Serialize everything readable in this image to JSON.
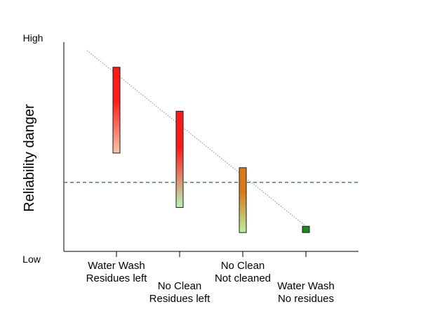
{
  "chart_data": {
    "type": "bar",
    "ylabel": "Reliability danger",
    "y_levels": {
      "high": "High",
      "low": "Low"
    },
    "ylim": [
      0,
      100
    ],
    "categories": [
      {
        "line1": "Water Wash",
        "line2": "Residues left"
      },
      {
        "line1": "No Clean",
        "line2": "Residues left"
      },
      {
        "line1": "No Clean",
        "line2": "Not cleaned"
      },
      {
        "line1": "Water Wash",
        "line2": "No residues"
      }
    ],
    "ranges": [
      {
        "low": 47,
        "high": 88,
        "color_top": "#ff1a1a",
        "color_bottom": "#f5c7a8"
      },
      {
        "low": 21,
        "high": 67,
        "color_top": "#ff1a1a",
        "color_bottom": "#b8f5b8"
      },
      {
        "low": 9,
        "high": 40,
        "color_top": "#d97a1a",
        "color_bottom": "#b8f0a0"
      },
      {
        "low": 9,
        "high": 12,
        "color_top": "#1a8c1a",
        "color_bottom": "#1a8c1a"
      }
    ],
    "threshold": {
      "value": 33,
      "color": "#1a9c2a",
      "style": "dashed"
    },
    "trend_line": {
      "start": 96,
      "end": 12,
      "style": "dotted",
      "color": "#888888"
    },
    "grid": false,
    "legend": false
  }
}
